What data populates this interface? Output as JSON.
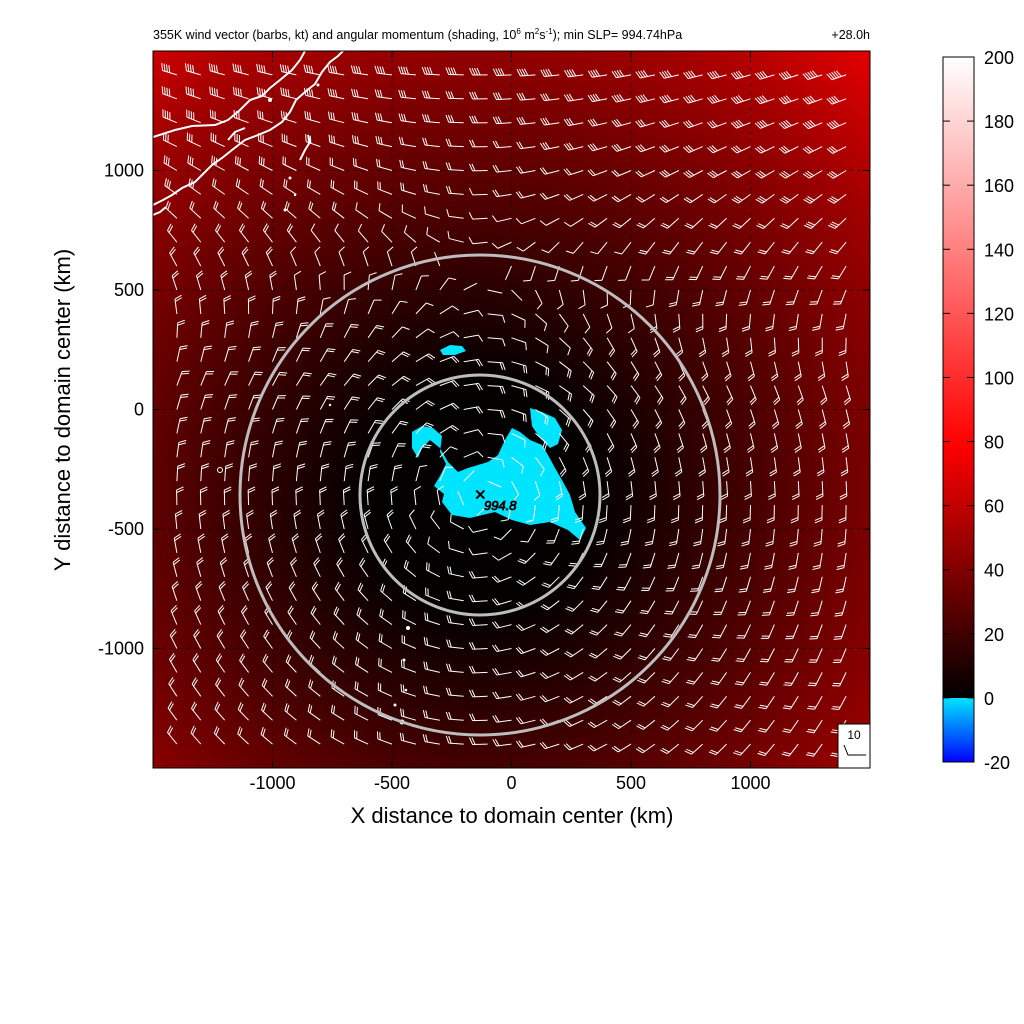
{
  "header": {
    "title_a": "355K wind vector (barbs, kt) and angular momentum (shading, 10",
    "title_exp1": "6",
    "title_b": " m",
    "title_exp2": "2",
    "title_c": "s",
    "title_exp3": "-1",
    "title_d": "); min SLP= 994.74hPa",
    "time": "+28.0h"
  },
  "axes": {
    "xlabel": "X distance to domain center (km)",
    "ylabel": "Y distance to domain center (km)",
    "xticks": [
      "-1000",
      "-500",
      "0",
      "500",
      "1000"
    ],
    "yticks": [
      "1000",
      "500",
      "0",
      "-500",
      "-1000"
    ]
  },
  "barb_key": {
    "label": "10"
  },
  "center_marker": {
    "symbol": "✕",
    "label": "994.8"
  },
  "colorbar": {
    "ticks": [
      "200",
      "180",
      "160",
      "140",
      "120",
      "100",
      "80",
      "60",
      "40",
      "20",
      "0",
      "-20"
    ]
  },
  "chart_data": {
    "type": "heatmap",
    "title": "355K wind vector (barbs, kt) and angular momentum (shading, 10^6 m^2 s^-1); min SLP= 994.74hPa",
    "time_label": "+28.0h",
    "xlabel": "X distance to domain center (km)",
    "ylabel": "Y distance to domain center (km)",
    "xlim": [
      -1500,
      1500
    ],
    "ylim": [
      -1500,
      1500
    ],
    "xticks": [
      -1000,
      -500,
      0,
      500,
      1000
    ],
    "yticks": [
      -1000,
      -500,
      0,
      500,
      1000
    ],
    "grid": true,
    "shading": {
      "variable": "angular momentum",
      "units": "10^6 m^2 s^-1",
      "colorbar_range": [
        -20,
        200
      ],
      "colorbar_ticks": [
        -20,
        0,
        20,
        40,
        60,
        80,
        100,
        120,
        140,
        160,
        180,
        200
      ],
      "colors": {
        "below_zero": "#00e5ff",
        "zero": "#000000",
        "mid": "#ff0000",
        "max": "#ffffff"
      },
      "minimum_center_km": [
        -130,
        -370
      ]
    },
    "min_slp": {
      "x": -130,
      "y": -370,
      "label": "994.8",
      "value_hpa": 994.74
    },
    "range_rings": [
      {
        "center": [
          -130,
          -370
        ],
        "radius_km": 500
      },
      {
        "center": [
          -130,
          -370
        ],
        "radius_km": 1000
      }
    ],
    "wind_barbs": {
      "units": "kt",
      "grid_spacing_km": 100,
      "key_value": 10
    },
    "coastline": {
      "region": "upper-left",
      "color": "#ffffff"
    }
  }
}
